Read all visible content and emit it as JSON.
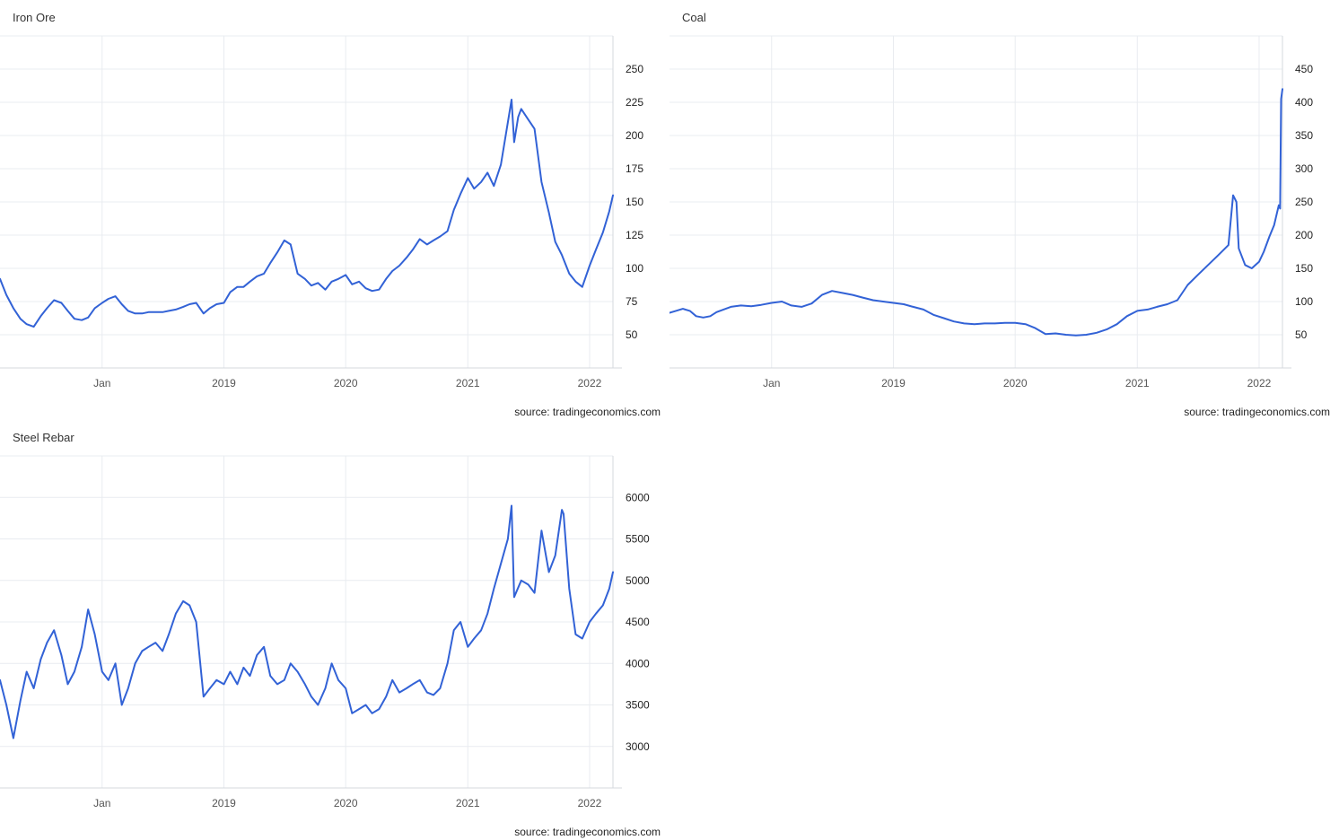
{
  "colors": {
    "series": "#3262d6",
    "grid": "#e9ecf0",
    "axis": "#d4d8de"
  },
  "chart_data": [
    {
      "type": "line",
      "title": "Iron Ore",
      "source": "source: tradingeconomics.com",
      "grid": true,
      "yaxis_side": "right",
      "xlim": [
        "2017-03-01",
        "2022-03-12"
      ],
      "ylim": [
        25,
        275
      ],
      "yticks": [
        50,
        75,
        100,
        125,
        150,
        175,
        200,
        225,
        250
      ],
      "xticks": [
        {
          "label": "Jan",
          "date": "2018-01-01"
        },
        {
          "label": "2019",
          "date": "2019-01-01"
        },
        {
          "label": "2020",
          "date": "2020-01-01"
        },
        {
          "label": "2021",
          "date": "2021-01-01"
        },
        {
          "label": "2022",
          "date": "2022-01-01"
        }
      ],
      "series": [
        {
          "x": [
            "2017-03-01",
            "2017-03-20",
            "2017-04-10",
            "2017-05-01",
            "2017-05-20",
            "2017-06-10",
            "2017-07-01",
            "2017-07-20",
            "2017-08-10",
            "2017-09-01",
            "2017-09-20",
            "2017-10-10",
            "2017-11-01",
            "2017-11-20",
            "2017-12-10",
            "2018-01-01",
            "2018-01-20",
            "2018-02-10",
            "2018-03-01",
            "2018-03-20",
            "2018-04-10",
            "2018-05-01",
            "2018-05-20",
            "2018-06-10",
            "2018-07-01",
            "2018-07-20",
            "2018-08-10",
            "2018-09-01",
            "2018-09-20",
            "2018-10-10",
            "2018-11-01",
            "2018-11-20",
            "2018-12-10",
            "2019-01-01",
            "2019-01-20",
            "2019-02-10",
            "2019-03-01",
            "2019-03-20",
            "2019-04-10",
            "2019-05-01",
            "2019-05-20",
            "2019-06-10",
            "2019-07-01",
            "2019-07-20",
            "2019-08-10",
            "2019-09-01",
            "2019-09-20",
            "2019-10-10",
            "2019-11-01",
            "2019-11-20",
            "2019-12-10",
            "2020-01-01",
            "2020-01-20",
            "2020-02-10",
            "2020-03-01",
            "2020-03-20",
            "2020-04-10",
            "2020-05-01",
            "2020-05-20",
            "2020-06-10",
            "2020-07-01",
            "2020-07-20",
            "2020-08-10",
            "2020-09-01",
            "2020-09-20",
            "2020-10-10",
            "2020-11-01",
            "2020-11-20",
            "2020-12-10",
            "2021-01-01",
            "2021-01-20",
            "2021-02-10",
            "2021-03-01",
            "2021-03-20",
            "2021-04-10",
            "2021-05-01",
            "2021-05-12",
            "2021-05-20",
            "2021-06-01",
            "2021-06-10",
            "2021-07-01",
            "2021-07-20",
            "2021-08-10",
            "2021-09-01",
            "2021-09-20",
            "2021-10-10",
            "2021-11-01",
            "2021-11-20",
            "2021-12-10",
            "2022-01-01",
            "2022-01-20",
            "2022-02-10",
            "2022-03-01",
            "2022-03-12"
          ],
          "values": [
            92,
            80,
            70,
            62,
            58,
            56,
            64,
            70,
            76,
            74,
            68,
            62,
            61,
            63,
            70,
            74,
            77,
            79,
            73,
            68,
            66,
            66,
            67,
            67,
            67,
            68,
            69,
            71,
            73,
            74,
            66,
            70,
            73,
            74,
            82,
            86,
            86,
            90,
            94,
            96,
            104,
            112,
            121,
            118,
            96,
            92,
            87,
            89,
            84,
            90,
            92,
            95,
            88,
            90,
            85,
            83,
            84,
            92,
            98,
            102,
            108,
            114,
            122,
            118,
            121,
            124,
            128,
            144,
            156,
            168,
            160,
            165,
            172,
            162,
            178,
            210,
            227,
            195,
            214,
            220,
            212,
            205,
            165,
            142,
            120,
            110,
            96,
            90,
            86,
            102,
            114,
            127,
            143,
            155
          ]
        }
      ]
    },
    {
      "type": "line",
      "title": "Coal",
      "source": "source: tradingeconomics.com",
      "grid": true,
      "yaxis_side": "right",
      "xlim": [
        "2017-03-01",
        "2022-03-12"
      ],
      "ylim": [
        0,
        500
      ],
      "yticks": [
        50,
        100,
        150,
        200,
        250,
        300,
        350,
        400,
        450
      ],
      "xticks": [
        {
          "label": "Jan",
          "date": "2018-01-01"
        },
        {
          "label": "2019",
          "date": "2019-01-01"
        },
        {
          "label": "2020",
          "date": "2020-01-01"
        },
        {
          "label": "2021",
          "date": "2021-01-01"
        },
        {
          "label": "2022",
          "date": "2022-01-01"
        }
      ],
      "series": [
        {
          "x": [
            "2017-03-01",
            "2017-03-20",
            "2017-04-10",
            "2017-05-01",
            "2017-05-20",
            "2017-06-10",
            "2017-07-01",
            "2017-07-20",
            "2017-08-10",
            "2017-09-01",
            "2017-10-01",
            "2017-11-01",
            "2017-12-01",
            "2018-01-01",
            "2018-02-01",
            "2018-03-01",
            "2018-04-01",
            "2018-05-01",
            "2018-06-01",
            "2018-07-01",
            "2018-08-01",
            "2018-09-01",
            "2018-10-01",
            "2018-11-01",
            "2018-12-01",
            "2019-01-01",
            "2019-02-01",
            "2019-03-01",
            "2019-04-01",
            "2019-05-01",
            "2019-06-01",
            "2019-07-01",
            "2019-08-01",
            "2019-09-01",
            "2019-10-01",
            "2019-11-01",
            "2019-12-01",
            "2020-01-01",
            "2020-02-01",
            "2020-03-01",
            "2020-04-01",
            "2020-05-01",
            "2020-06-01",
            "2020-07-01",
            "2020-08-01",
            "2020-09-01",
            "2020-10-01",
            "2020-11-01",
            "2020-12-01",
            "2021-01-01",
            "2021-02-01",
            "2021-03-01",
            "2021-04-01",
            "2021-05-01",
            "2021-06-01",
            "2021-07-01",
            "2021-08-01",
            "2021-09-01",
            "2021-10-01",
            "2021-10-15",
            "2021-10-25",
            "2021-11-01",
            "2021-11-20",
            "2021-12-10",
            "2022-01-01",
            "2022-01-15",
            "2022-02-01",
            "2022-02-15",
            "2022-03-01",
            "2022-03-05",
            "2022-03-08",
            "2022-03-12"
          ],
          "values": [
            83,
            86,
            89,
            86,
            78,
            76,
            78,
            84,
            88,
            92,
            94,
            93,
            95,
            98,
            100,
            94,
            92,
            97,
            110,
            116,
            113,
            110,
            106,
            102,
            100,
            98,
            96,
            92,
            88,
            80,
            75,
            70,
            67,
            66,
            67,
            67,
            68,
            68,
            66,
            60,
            51,
            52,
            50,
            49,
            50,
            53,
            58,
            66,
            78,
            86,
            88,
            92,
            96,
            102,
            125,
            140,
            155,
            170,
            185,
            260,
            250,
            180,
            155,
            150,
            160,
            175,
            198,
            215,
            245,
            240,
            405,
            420
          ]
        }
      ]
    },
    {
      "type": "line",
      "title": "Steel Rebar",
      "source": "source: tradingeconomics.com",
      "grid": true,
      "yaxis_side": "right",
      "xlim": [
        "2017-03-01",
        "2022-03-12"
      ],
      "ylim": [
        2500,
        6500
      ],
      "yticks": [
        3000,
        3500,
        4000,
        4500,
        5000,
        5500,
        6000
      ],
      "xticks": [
        {
          "label": "Jan",
          "date": "2018-01-01"
        },
        {
          "label": "2019",
          "date": "2019-01-01"
        },
        {
          "label": "2020",
          "date": "2020-01-01"
        },
        {
          "label": "2021",
          "date": "2021-01-01"
        },
        {
          "label": "2022",
          "date": "2022-01-01"
        }
      ],
      "series": [
        {
          "x": [
            "2017-03-01",
            "2017-03-20",
            "2017-04-10",
            "2017-05-01",
            "2017-05-20",
            "2017-06-10",
            "2017-07-01",
            "2017-07-20",
            "2017-08-10",
            "2017-09-01",
            "2017-09-20",
            "2017-10-10",
            "2017-11-01",
            "2017-11-20",
            "2017-12-10",
            "2018-01-01",
            "2018-01-20",
            "2018-02-10",
            "2018-03-01",
            "2018-03-20",
            "2018-04-10",
            "2018-05-01",
            "2018-05-20",
            "2018-06-10",
            "2018-07-01",
            "2018-07-20",
            "2018-08-10",
            "2018-09-01",
            "2018-09-20",
            "2018-10-10",
            "2018-11-01",
            "2018-11-20",
            "2018-12-10",
            "2019-01-01",
            "2019-01-20",
            "2019-02-10",
            "2019-03-01",
            "2019-03-20",
            "2019-04-10",
            "2019-05-01",
            "2019-05-20",
            "2019-06-10",
            "2019-07-01",
            "2019-07-20",
            "2019-08-10",
            "2019-09-01",
            "2019-09-20",
            "2019-10-10",
            "2019-11-01",
            "2019-11-20",
            "2019-12-10",
            "2020-01-01",
            "2020-01-20",
            "2020-02-10",
            "2020-03-01",
            "2020-03-20",
            "2020-04-10",
            "2020-05-01",
            "2020-05-20",
            "2020-06-10",
            "2020-07-01",
            "2020-07-20",
            "2020-08-10",
            "2020-09-01",
            "2020-09-20",
            "2020-10-10",
            "2020-11-01",
            "2020-11-20",
            "2020-12-10",
            "2021-01-01",
            "2021-01-20",
            "2021-02-10",
            "2021-03-01",
            "2021-03-20",
            "2021-04-10",
            "2021-05-01",
            "2021-05-12",
            "2021-05-20",
            "2021-06-10",
            "2021-07-01",
            "2021-07-20",
            "2021-08-10",
            "2021-09-01",
            "2021-09-20",
            "2021-10-10",
            "2021-10-15",
            "2021-11-01",
            "2021-11-20",
            "2021-12-10",
            "2022-01-01",
            "2022-01-20",
            "2022-02-10",
            "2022-03-01",
            "2022-03-12"
          ],
          "values": [
            3800,
            3500,
            3100,
            3550,
            3900,
            3700,
            4050,
            4250,
            4400,
            4100,
            3750,
            3900,
            4200,
            4650,
            4350,
            3900,
            3800,
            4000,
            3500,
            3700,
            4000,
            4150,
            4200,
            4250,
            4150,
            4350,
            4600,
            4750,
            4700,
            4500,
            3600,
            3700,
            3800,
            3750,
            3900,
            3750,
            3950,
            3850,
            4100,
            4200,
            3850,
            3750,
            3800,
            4000,
            3900,
            3750,
            3600,
            3500,
            3700,
            4000,
            3800,
            3700,
            3400,
            3450,
            3500,
            3400,
            3450,
            3600,
            3800,
            3650,
            3700,
            3750,
            3800,
            3650,
            3620,
            3700,
            4000,
            4400,
            4500,
            4200,
            4300,
            4400,
            4600,
            4900,
            5200,
            5500,
            5900,
            4800,
            5000,
            4950,
            4850,
            5600,
            5100,
            5300,
            5850,
            5800,
            4900,
            4350,
            4300,
            4500,
            4600,
            4700,
            4900,
            5100
          ]
        }
      ]
    }
  ]
}
